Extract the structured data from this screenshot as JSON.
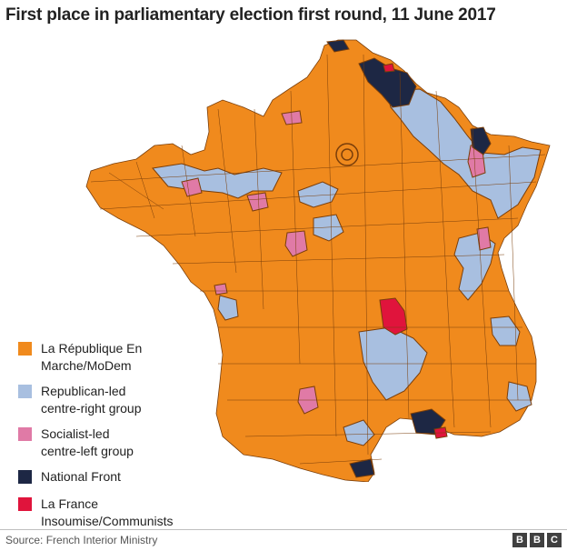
{
  "title": "First place in parliamentary election first round, 11 June 2017",
  "legend": [
    {
      "label": "La République En\nMarche/MoDem",
      "color": "#f08a1d",
      "key": "lrem"
    },
    {
      "label": "Republican-led\ncentre-right group",
      "color": "#a8bfe0",
      "key": "lr"
    },
    {
      "label": "Socialist-led\ncentre-left group",
      "color": "#e07aa6",
      "key": "ps"
    },
    {
      "label": "National Front",
      "color": "#1d2744",
      "key": "fn"
    },
    {
      "label": "La France Insoumise/Communists",
      "color": "#e0143c",
      "key": "fi"
    }
  ],
  "source": "Source: French Interior Ministry",
  "logo": [
    "B",
    "B",
    "C"
  ],
  "colors": {
    "border": "#7a3e0a",
    "background": "#ffffff"
  }
}
